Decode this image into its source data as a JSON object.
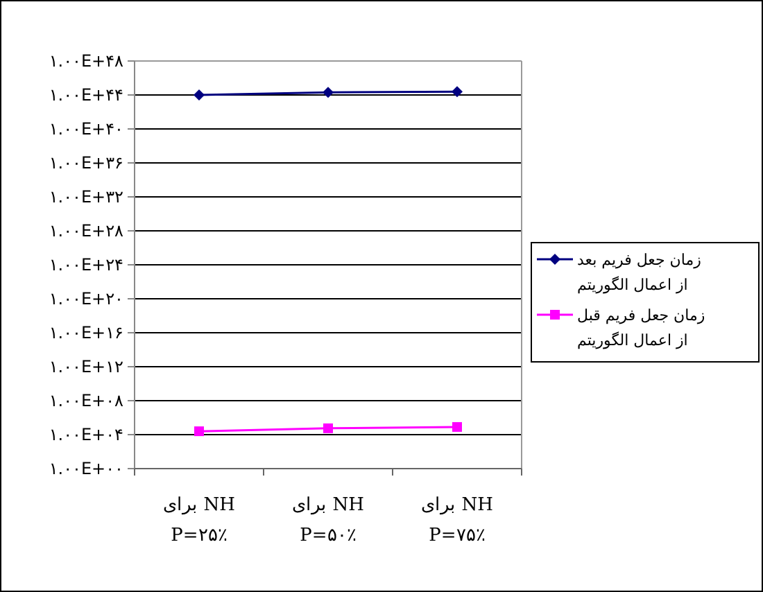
{
  "chart_data": {
    "type": "line",
    "log": "y",
    "categories": [
      "برای NH\nP=۲۵٪",
      "برای NH\nP=۵۰٪",
      "برای NH\nP=۷۵٪"
    ],
    "series": [
      {
        "name": "زمان جعل فریم بعد از اعمال الگوریتم",
        "color": "#000080",
        "marker": "diamond",
        "values": [
          1e+44,
          2e+44,
          2.5e+44
        ]
      },
      {
        "name": "زمان جعل فریم قبل از اعمال الگوریتم",
        "color": "#ff00ff",
        "marker": "square",
        "values": [
          25000.0,
          56000.0,
          80000.0
        ]
      }
    ],
    "ylim": [
      1,
      1e+48
    ],
    "yticks": [
      {
        "value": 1,
        "label": "۱.۰۰E+۰۰"
      },
      {
        "value": 10000.0,
        "label": "۱.۰۰E+۰۴"
      },
      {
        "value": 100000000.0,
        "label": "۱.۰۰E+۰۸"
      },
      {
        "value": 1000000000000.0,
        "label": "۱.۰۰E+۱۲"
      },
      {
        "value": 1e+16,
        "label": "۱.۰۰E+۱۶"
      },
      {
        "value": 1e+20,
        "label": "۱.۰۰E+۲۰"
      },
      {
        "value": 1e+24,
        "label": "۱.۰۰E+۲۴"
      },
      {
        "value": 1e+28,
        "label": "۱.۰۰E+۲۸"
      },
      {
        "value": 1e+32,
        "label": "۱.۰۰E+۳۲"
      },
      {
        "value": 1e+36,
        "label": "۱.۰۰E+۳۶"
      },
      {
        "value": 1e+40,
        "label": "۱.۰۰E+۴۰"
      },
      {
        "value": 1e+44,
        "label": "۱.۰۰E+۴۴"
      },
      {
        "value": 1e+48,
        "label": "۱.۰۰E+۴۸"
      }
    ],
    "grid": "y",
    "legend": "right"
  }
}
